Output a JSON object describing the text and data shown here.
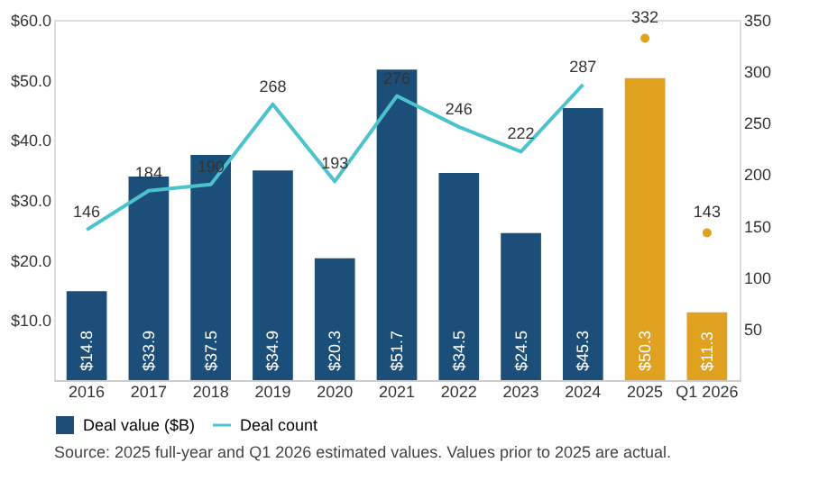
{
  "chart_data": {
    "type": "bar",
    "categories": [
      "2016",
      "2017",
      "2018",
      "2019",
      "2020",
      "2021",
      "2022",
      "2023",
      "2024",
      "2025",
      "Q1 2026"
    ],
    "series": [
      {
        "name": "Deal value ($B)",
        "colors": [
          "#1b4f7a",
          "#1b4f7a",
          "#1b4f7a",
          "#1b4f7a",
          "#1b4f7a",
          "#1b4f7a",
          "#1b4f7a",
          "#1b4f7a",
          "#1b4f7a",
          "#e0a020",
          "#e0a020"
        ],
        "color": "#1b4f7a",
        "values": [
          14.8,
          33.9,
          37.5,
          34.9,
          20.3,
          51.7,
          34.5,
          24.5,
          45.3,
          50.3,
          11.3
        ],
        "value_labels": [
          "$14.8",
          "$33.9",
          "$37.5",
          "$34.9",
          "$20.3",
          "$51.7",
          "$34.5",
          "$24.5",
          "$45.3",
          "$50.3",
          "$11.3"
        ]
      },
      {
        "name": "Deal count",
        "type": "line",
        "axis": "y2",
        "color": "#4cc3cc",
        "values": [
          146,
          184,
          190,
          268,
          193,
          276,
          246,
          222,
          287,
          null,
          null
        ],
        "value_labels": [
          "146",
          "184",
          "190",
          "268",
          "193",
          "276",
          "246",
          "222",
          "287",
          null,
          null
        ]
      },
      {
        "type": "scatter",
        "axis": "y2",
        "color": "#e0a020",
        "values": [
          null,
          null,
          null,
          null,
          null,
          null,
          null,
          null,
          null,
          332,
          143
        ],
        "value_labels": [
          null,
          null,
          null,
          null,
          null,
          null,
          null,
          null,
          null,
          "332",
          "143"
        ]
      }
    ],
    "ylim": [
      0,
      60
    ],
    "yticks": [
      {
        "value": 10,
        "label": "$10.0"
      },
      {
        "value": 20,
        "label": "$20.0"
      },
      {
        "value": 30,
        "label": "$30.0"
      },
      {
        "value": 40,
        "label": "$40.0"
      },
      {
        "value": 50,
        "label": "$50.0"
      },
      {
        "value": 60,
        "label": "$60.0"
      }
    ],
    "y2lim": [
      0,
      350
    ],
    "y2ticks": [
      50,
      100,
      150,
      200,
      250,
      300,
      350
    ],
    "legend": "bottom",
    "grid": false,
    "annotations": [
      "Source: 2025 full-year and Q1 2026 estimated values. Values prior to 2025 are actual."
    ]
  }
}
